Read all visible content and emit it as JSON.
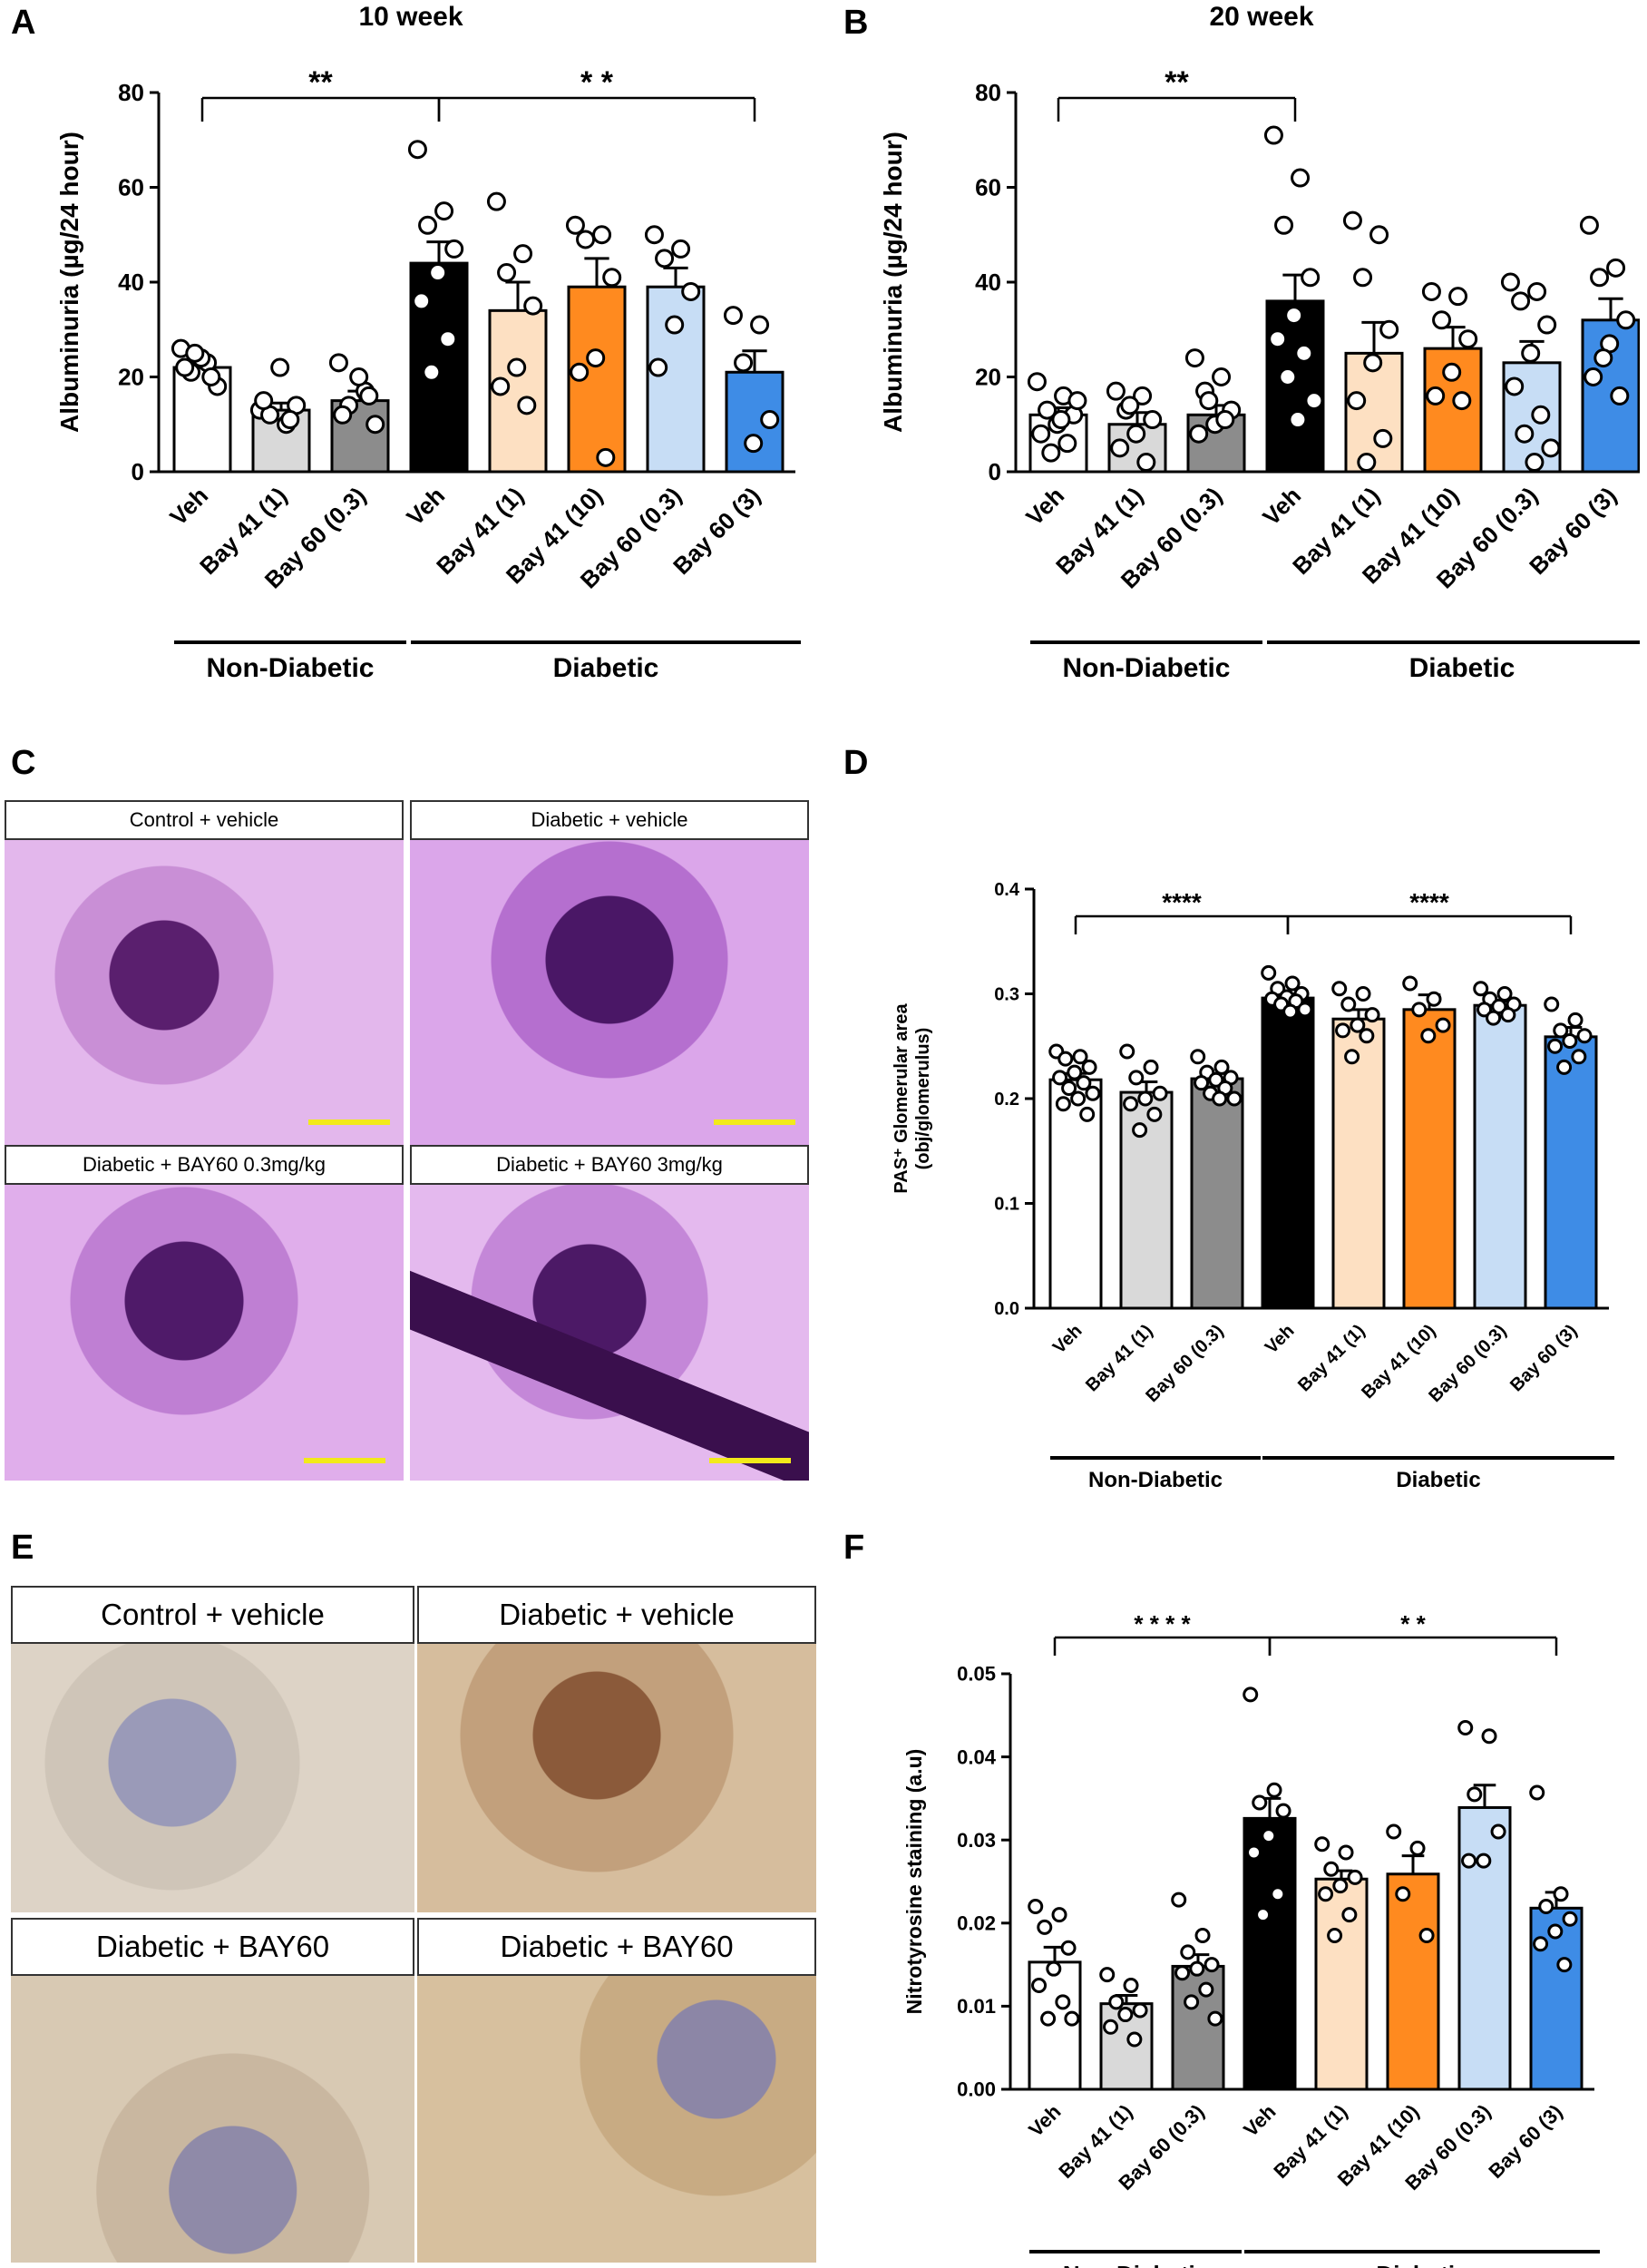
{
  "panels": {
    "A": "A",
    "B": "B",
    "C": "C",
    "D": "D",
    "E": "E",
    "F": "F"
  },
  "groups": {
    "non_diabetic": "Non-Diabetic",
    "diabetic": "Diabetic"
  },
  "colors": {
    "Veh_nd": "#ffffff",
    "Bay41_1": "#d9d9d9",
    "Bay60_03_nd": "#8c8c8c",
    "Veh_d": "#000000",
    "Bay41_1_d": "#fde0c2",
    "Bay41_10": "#ff8a1f",
    "Bay60_03_d": "#c7ddf5",
    "Bay60_3": "#3e8ce6"
  },
  "chart_data": [
    {
      "panel": "A",
      "type": "bar",
      "title": "10 week",
      "ylabel": "Albuminuria (µg/24 hour)",
      "ylim": [
        0,
        80
      ],
      "yticks": [
        "0",
        "20",
        "40",
        "60",
        "80"
      ],
      "categories": [
        "Veh",
        "Bay 41 (1)",
        "Bay 60 (0.3)",
        "Veh",
        "Bay 41 (1)",
        "Bay 41 (10)",
        "Bay 60 (0.3)",
        "Bay 60 (3)"
      ],
      "values": [
        22,
        13,
        15,
        44,
        34,
        39,
        39,
        21
      ],
      "errors": [
        2,
        1.5,
        2,
        4.5,
        6,
        6,
        4,
        4.5
      ],
      "points": [
        [
          26,
          23,
          21,
          18,
          24,
          22,
          20,
          25
        ],
        [
          13,
          10,
          12,
          14,
          22,
          15,
          11
        ],
        [
          23,
          17,
          14,
          10,
          20,
          12,
          16
        ],
        [
          68,
          55,
          52,
          47,
          42,
          36,
          28,
          21
        ],
        [
          57,
          46,
          42,
          35,
          22,
          18,
          14
        ],
        [
          52,
          50,
          49,
          41,
          24,
          21,
          3
        ],
        [
          50,
          47,
          45,
          38,
          31,
          22
        ],
        [
          33,
          31,
          23,
          11,
          6
        ]
      ],
      "brackets": [
        {
          "from": 0,
          "to": 3,
          "label": "**"
        },
        {
          "from": 3,
          "to": 7,
          "label": "* *"
        }
      ],
      "groups": [
        "Non-Diabetic",
        "Diabetic"
      ]
    },
    {
      "panel": "B",
      "type": "bar",
      "title": "20 week",
      "ylabel": "Albuminuria (µg/24 hour)",
      "ylim": [
        0,
        80
      ],
      "yticks": [
        "0",
        "20",
        "40",
        "60",
        "80"
      ],
      "categories": [
        "Veh",
        "Bay 41 (1)",
        "Bay 60 (0.3)",
        "Veh",
        "Bay 41 (1)",
        "Bay 41 (10)",
        "Bay 60 (0.3)",
        "Bay 60 (3)"
      ],
      "values": [
        12,
        10,
        12,
        36,
        25,
        26,
        23,
        32
      ],
      "errors": [
        1.5,
        2.5,
        2,
        5.5,
        6.5,
        4.5,
        4.5,
        4.5
      ],
      "points": [
        [
          19,
          16,
          13,
          12,
          10,
          8,
          6,
          4,
          15,
          11
        ],
        [
          17,
          16,
          13,
          11,
          8,
          5,
          2,
          14
        ],
        [
          24,
          20,
          17,
          13,
          10,
          8,
          11,
          15
        ],
        [
          71,
          62,
          52,
          41,
          33,
          28,
          25,
          20,
          15,
          11
        ],
        [
          53,
          50,
          41,
          30,
          23,
          15,
          7,
          2
        ],
        [
          38,
          37,
          32,
          28,
          21,
          16,
          15
        ],
        [
          40,
          38,
          36,
          31,
          25,
          18,
          12,
          8,
          5,
          2
        ],
        [
          52,
          43,
          41,
          32,
          27,
          20,
          16,
          24
        ]
      ],
      "brackets": [
        {
          "from": 0,
          "to": 3,
          "label": "**"
        }
      ],
      "groups": [
        "Non-Diabetic",
        "Diabetic"
      ]
    },
    {
      "panel": "D",
      "type": "bar",
      "title": "",
      "ylabel": "PAS⁺ Glomerular area",
      "ylabel2": "(obj/glomerulus)",
      "ylim": [
        0,
        0.4
      ],
      "yticks": [
        "0.0",
        "0.1",
        "0.2",
        "0.3",
        "0.4"
      ],
      "categories": [
        "Veh",
        "Bay 41 (1)",
        "Bay 60 (0.3)",
        "Veh",
        "Bay 41 (1)",
        "Bay 41 (10)",
        "Bay 60 (0.3)",
        "Bay 60 (3)"
      ],
      "values": [
        0.218,
        0.206,
        0.219,
        0.296,
        0.276,
        0.285,
        0.289,
        0.259
      ],
      "errors": [
        0.006,
        0.01,
        0.005,
        0.004,
        0.009,
        0.014,
        0.004,
        0.009
      ],
      "points": [
        [
          0.245,
          0.24,
          0.238,
          0.23,
          0.225,
          0.22,
          0.215,
          0.21,
          0.205,
          0.2,
          0.195,
          0.185
        ],
        [
          0.245,
          0.23,
          0.22,
          0.205,
          0.2,
          0.195,
          0.185,
          0.17
        ],
        [
          0.24,
          0.23,
          0.225,
          0.22,
          0.218,
          0.215,
          0.21,
          0.205,
          0.2,
          0.2
        ],
        [
          0.32,
          0.31,
          0.305,
          0.3,
          0.297,
          0.295,
          0.293,
          0.29,
          0.285,
          0.283
        ],
        [
          0.305,
          0.3,
          0.29,
          0.28,
          0.27,
          0.265,
          0.26,
          0.24
        ],
        [
          0.31,
          0.295,
          0.285,
          0.27,
          0.26
        ],
        [
          0.305,
          0.3,
          0.295,
          0.29,
          0.288,
          0.285,
          0.28,
          0.277
        ],
        [
          0.29,
          0.275,
          0.265,
          0.26,
          0.255,
          0.25,
          0.24,
          0.23
        ]
      ],
      "brackets": [
        {
          "from": 0,
          "to": 3,
          "label": "****"
        },
        {
          "from": 3,
          "to": 7,
          "label": "****"
        }
      ],
      "groups": [
        "Non-Diabetic",
        "Diabetic"
      ]
    },
    {
      "panel": "F",
      "type": "bar",
      "title": "",
      "ylabel": "Nitrotyrosine staining (a.u)",
      "ylim": [
        0,
        0.05
      ],
      "yticks": [
        "0.00",
        "0.01",
        "0.02",
        "0.03",
        "0.04",
        "0.05"
      ],
      "categories": [
        "Veh",
        "Bay 41 (1)",
        "Bay 60 (0.3)",
        "Veh",
        "Bay 41 (1)",
        "Bay 41 (10)",
        "Bay 60 (0.3)",
        "Bay 60 (3)"
      ],
      "values": [
        0.0153,
        0.0103,
        0.0148,
        0.0326,
        0.0253,
        0.0259,
        0.0339,
        0.0218
      ],
      "errors": [
        0.0018,
        0.001,
        0.0014,
        0.0024,
        0.001,
        0.0022,
        0.0027,
        0.0019
      ],
      "points": [
        [
          0.022,
          0.021,
          0.0195,
          0.017,
          0.0145,
          0.0125,
          0.0105,
          0.0085,
          0.0085
        ],
        [
          0.0138,
          0.0125,
          0.0105,
          0.0095,
          0.009,
          0.0075,
          0.006
        ],
        [
          0.0228,
          0.0185,
          0.0165,
          0.015,
          0.0145,
          0.014,
          0.012,
          0.0105,
          0.0085
        ],
        [
          0.0475,
          0.036,
          0.0345,
          0.0335,
          0.0305,
          0.0285,
          0.0235,
          0.021
        ],
        [
          0.0295,
          0.0285,
          0.0265,
          0.0255,
          0.0245,
          0.0235,
          0.021,
          0.0185
        ],
        [
          0.031,
          0.029,
          0.0235,
          0.0185
        ],
        [
          0.0435,
          0.0425,
          0.0355,
          0.031,
          0.0275,
          0.0275
        ],
        [
          0.0357,
          0.0235,
          0.022,
          0.0205,
          0.019,
          0.0175,
          0.015
        ]
      ],
      "brackets": [
        {
          "from": 0,
          "to": 3,
          "label": "* * * *"
        },
        {
          "from": 3,
          "to": 7,
          "label": "* *"
        }
      ],
      "groups": [
        "Non-Diabetic",
        "Diabetic"
      ]
    }
  ],
  "micrographs_C": [
    "Control + vehicle",
    "Diabetic + vehicle",
    "Diabetic + BAY60 0.3mg/kg",
    "Diabetic + BAY60 3mg/kg"
  ],
  "micrographs_E": [
    "Control + vehicle",
    "Diabetic + vehicle",
    "Diabetic + BAY60",
    "Diabetic + BAY60"
  ]
}
